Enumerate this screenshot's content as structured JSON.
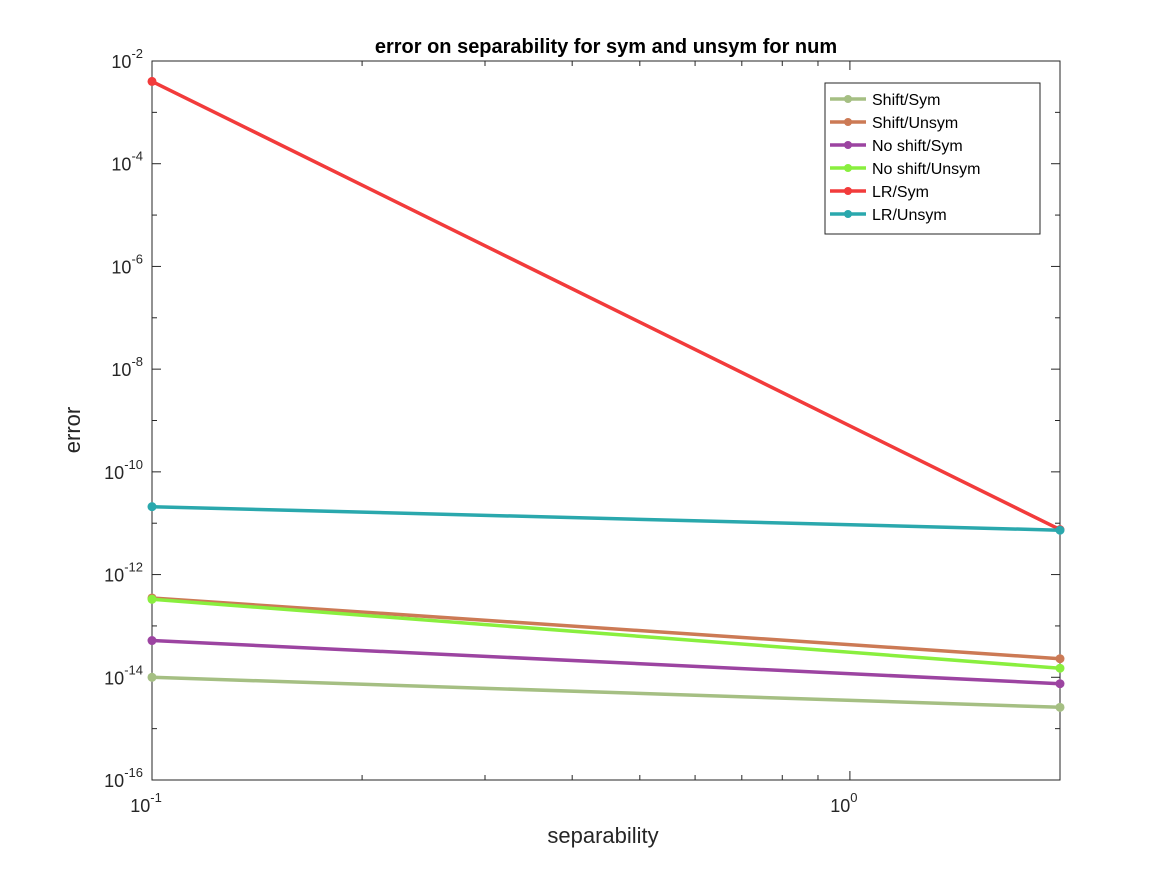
{
  "chart_data": {
    "type": "line",
    "title": "error on separability for sym and unsym for num",
    "xlabel": "separability",
    "ylabel": "error",
    "x_scale": "log",
    "y_scale": "log",
    "xlim": [
      0.1,
      2
    ],
    "ylim": [
      1e-16,
      0.01
    ],
    "x_ticks": [
      {
        "value": 0.1,
        "base": "10",
        "exp": "-1"
      },
      {
        "value": 1,
        "base": "10",
        "exp": "0"
      }
    ],
    "y_ticks": [
      {
        "value": 1e-16,
        "base": "10",
        "exp": "-16"
      },
      {
        "value": 1e-14,
        "base": "10",
        "exp": "-14"
      },
      {
        "value": 1e-12,
        "base": "10",
        "exp": "-12"
      },
      {
        "value": 1e-10,
        "base": "10",
        "exp": "-10"
      },
      {
        "value": 1e-08,
        "base": "10",
        "exp": "-8"
      },
      {
        "value": 1e-06,
        "base": "10",
        "exp": "-6"
      },
      {
        "value": 0.0001,
        "base": "10",
        "exp": "-4"
      },
      {
        "value": 0.01,
        "base": "10",
        "exp": "-2"
      }
    ],
    "grid": false,
    "legend_position": "top-right",
    "x": [
      0.1,
      2
    ],
    "series": [
      {
        "name": "Shift/Sym",
        "color": "#a5bf83",
        "values": [
          1e-14,
          2.6e-15
        ]
      },
      {
        "name": "Shift/Unsym",
        "color": "#cc7a55",
        "values": [
          3.5e-13,
          2.3e-14
        ]
      },
      {
        "name": "No shift/Sym",
        "color": "#9c44a1",
        "values": [
          5.2e-14,
          7.5e-15
        ]
      },
      {
        "name": "No shift/Unsym",
        "color": "#89ef3e",
        "values": [
          3.3e-13,
          1.5e-14
        ]
      },
      {
        "name": "LR/Sym",
        "color": "#f23b3b",
        "values": [
          0.004,
          7.5e-12
        ]
      },
      {
        "name": "LR/Unsym",
        "color": "#2aa8ad",
        "values": [
          2.1e-11,
          7.3e-12
        ]
      }
    ]
  }
}
